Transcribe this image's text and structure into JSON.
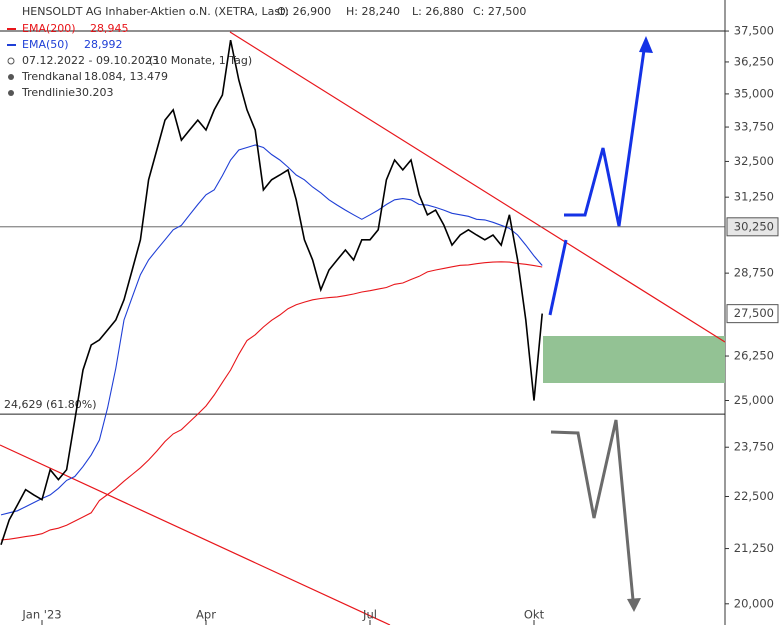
{
  "chart_data": {
    "type": "line",
    "title": "HENSOLDT AG Inhaber-Aktien o.N. (XETRA, Last)",
    "ohlc_labels": [
      "O: 26,900",
      "H: 28,240",
      "L: 26,880",
      "C: 27,500"
    ],
    "info": [
      {
        "label": "07.12.2022 - 09.10.2023",
        "value": "(10 Monate, 1 Tag)"
      },
      {
        "label": "Trendkanal",
        "value": "18.084, 13.479"
      },
      {
        "label": "Trendlinie",
        "value": "30.203"
      }
    ],
    "categories": [
      null,
      null,
      null,
      null,
      null,
      "Jan '23",
      null,
      null,
      null,
      null,
      null,
      null,
      null,
      null,
      null,
      null,
      null,
      null,
      null,
      null,
      null,
      null,
      null,
      null,
      null,
      "Apr",
      null,
      null,
      null,
      null,
      null,
      null,
      null,
      null,
      null,
      null,
      null,
      null,
      null,
      null,
      null,
      null,
      null,
      null,
      null,
      "Jul",
      null,
      null,
      null,
      null,
      null,
      null,
      null,
      null,
      null,
      null,
      null,
      null,
      null,
      null,
      null,
      null,
      null,
      null,
      null,
      "Okt",
      null
    ],
    "series": [
      {
        "name": "HENSOLDT AG Inhaber-Aktien o.N. (XETRA, Last)",
        "color": "#000000",
        "values": [
          21340,
          21930,
          22290,
          22670,
          22540,
          22420,
          23170,
          22920,
          23170,
          24470,
          25850,
          26570,
          26720,
          27010,
          27310,
          27920,
          28850,
          29820,
          31850,
          32910,
          34010,
          34390,
          33270,
          33640,
          34010,
          33640,
          34390,
          34960,
          37130,
          35540,
          34390,
          33640,
          31500,
          31850,
          32020,
          32200,
          31160,
          29820,
          29170,
          28230,
          28850,
          29170,
          29490,
          29170,
          29820,
          29820,
          30150,
          31850,
          32550,
          32200,
          32550,
          31330,
          30650,
          30810,
          30310,
          29650,
          29980,
          30150,
          29980,
          29820,
          29980,
          29650,
          30650,
          29170,
          27310,
          25000,
          27500
        ]
      },
      {
        "name": "EMA(200)",
        "color": "#e8161b",
        "last_label": "28,945",
        "values": [
          21450,
          21470,
          21500,
          21530,
          21560,
          21600,
          21690,
          21730,
          21800,
          21900,
          22000,
          22100,
          22400,
          22550,
          22700,
          22880,
          23050,
          23220,
          23420,
          23650,
          23900,
          24100,
          24210,
          24420,
          24630,
          24850,
          25150,
          25500,
          25850,
          26300,
          26700,
          26870,
          27100,
          27300,
          27460,
          27650,
          27770,
          27850,
          27920,
          27960,
          27990,
          28010,
          28050,
          28100,
          28160,
          28200,
          28250,
          28300,
          28400,
          28440,
          28550,
          28650,
          28790,
          28850,
          28900,
          28950,
          29000,
          29010,
          29050,
          29080,
          29100,
          29110,
          29100,
          29060,
          29030,
          28990,
          28945
        ]
      },
      {
        "name": "EMA(50)",
        "color": "#1f3fd6",
        "last_label": "28,992",
        "values": [
          22050,
          22100,
          22150,
          22250,
          22350,
          22450,
          22540,
          22700,
          22900,
          23000,
          23250,
          23550,
          23940,
          24800,
          25900,
          27310,
          28000,
          28700,
          29170,
          29500,
          29820,
          30150,
          30300,
          30650,
          31000,
          31330,
          31500,
          32000,
          32550,
          32910,
          33000,
          33090,
          33000,
          32750,
          32550,
          32300,
          32020,
          31850,
          31600,
          31400,
          31160,
          30980,
          30810,
          30650,
          30500,
          30650,
          30810,
          31000,
          31160,
          31200,
          31160,
          31000,
          30980,
          30900,
          30810,
          30700,
          30650,
          30600,
          30500,
          30480,
          30400,
          30300,
          30200,
          29980,
          29650,
          29300,
          28992
        ]
      }
    ],
    "log_scale": true,
    "ylim": [
      19540,
      38800
    ],
    "yticks": [
      {
        "value": 20000,
        "label": "20,000"
      },
      {
        "value": 21250,
        "label": "21,250"
      },
      {
        "value": 22500,
        "label": "22,500"
      },
      {
        "value": 23750,
        "label": "23,750"
      },
      {
        "value": 25000,
        "label": "25,000"
      },
      {
        "value": 26250,
        "label": "26,250"
      },
      {
        "value": 28750,
        "label": "28,750"
      },
      {
        "value": 31250,
        "label": "31,250"
      },
      {
        "value": 32500,
        "label": "32,500"
      },
      {
        "value": 33750,
        "label": "33,750"
      },
      {
        "value": 35000,
        "label": "35,000"
      },
      {
        "value": 36250,
        "label": "36,250"
      },
      {
        "value": 37500,
        "label": "37,500"
      }
    ],
    "price_labels": [
      {
        "value": 30250,
        "label": "30,250"
      },
      {
        "value": 27500,
        "label": "27,500"
      }
    ],
    "levels": [
      {
        "value": 24629,
        "label": "24,629 (61.80%)"
      },
      {
        "value": 37500,
        "label": null
      }
    ]
  }
}
